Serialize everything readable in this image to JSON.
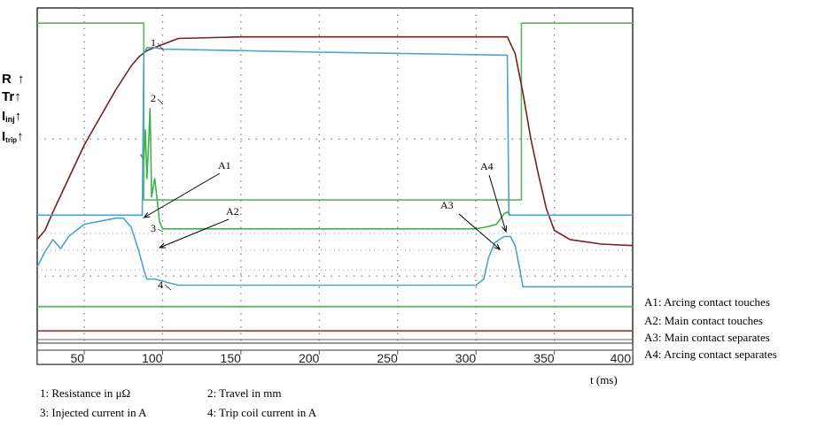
{
  "chart_data": {
    "type": "line",
    "xlabel": "t (ms)",
    "xlim": [
      20,
      400
    ],
    "x_ticks": [
      "50",
      "100",
      "150",
      "200",
      "250",
      "300",
      "350",
      "400"
    ],
    "y_axis_symbols": [
      {
        "label": "R",
        "arrow": "↑"
      },
      {
        "label": "Tr",
        "arrow": "↑"
      },
      {
        "label": "I",
        "sub": "inj",
        "arrow": "↑"
      },
      {
        "label": "I",
        "sub": "trip",
        "arrow": "↑"
      }
    ],
    "trace_numbers": [
      "1",
      "2",
      "3",
      "4"
    ],
    "annotations": [
      {
        "id": "A1",
        "text": "A1",
        "x": 87
      },
      {
        "id": "A2",
        "text": "A2",
        "x": 97
      },
      {
        "id": "A3",
        "text": "A3",
        "x": 313
      },
      {
        "id": "A4",
        "text": "A4",
        "x": 318
      }
    ],
    "annotation_legend": [
      "A1: Arcing contact touches",
      "A2: Main contact touches",
      "A3: Main contact separates",
      "A4: Arcing contact separates"
    ],
    "trace_legend": [
      "1: Resistance in μΩ",
      "2: Travel in mm",
      "3: Injected current in A",
      "4: Trip coil current in A"
    ],
    "series": [
      {
        "id": "resistance",
        "color": "#5cb85c",
        "x": [
          20,
          88,
          88,
          329,
          329,
          400
        ],
        "y": [
          95,
          95,
          37,
          37,
          95,
          95
        ]
      },
      {
        "id": "travel",
        "color": "#7a1f1f",
        "x": [
          20,
          25,
          30,
          40,
          50,
          60,
          70,
          80,
          85,
          90,
          95,
          100,
          110,
          150,
          200,
          250,
          300,
          320,
          325,
          330,
          335,
          340,
          345,
          350,
          360,
          380,
          400
        ],
        "y": [
          24,
          27,
          33,
          44,
          55,
          64,
          73,
          81,
          84,
          86,
          87,
          88,
          90,
          90.5,
          90.5,
          90.5,
          90.5,
          90.5,
          85,
          72,
          57,
          45,
          34,
          27,
          24,
          22.5,
          22
        ]
      },
      {
        "id": "injected",
        "color": "#4aa3d0",
        "x": [
          20,
          87,
          88,
          90,
          95,
          100,
          200,
          320,
          321,
          325,
          400
        ],
        "y": [
          32,
          32,
          85,
          87,
          87,
          86.5,
          85.5,
          84.5,
          32,
          32,
          32
        ]
      },
      {
        "id": "injected-arc",
        "color": "#3cb34a",
        "x": [
          86,
          88,
          89,
          90,
          91,
          92,
          93,
          95,
          97,
          98,
          100,
          150,
          200,
          250,
          300,
          305,
          310,
          313,
          316,
          318,
          320,
          322
        ],
        "y": [
          52,
          50,
          60,
          44,
          55,
          67,
          38,
          44,
          35,
          30,
          27.5,
          27.5,
          27.5,
          27.5,
          27.5,
          28,
          28.5,
          29,
          31,
          32.5,
          33,
          32
        ]
      },
      {
        "id": "trip-coil",
        "color": "#4aa3d0",
        "x": [
          20,
          25,
          30,
          35,
          40,
          45,
          50,
          60,
          70,
          75,
          80,
          85,
          88,
          90,
          95,
          110,
          200,
          300,
          305,
          308,
          312,
          318,
          322,
          325,
          328,
          330,
          335,
          340,
          400
        ],
        "y": [
          15,
          20,
          24,
          21,
          25,
          27,
          29,
          30,
          31,
          31,
          28,
          20,
          14,
          11,
          11,
          9,
          9,
          9,
          11,
          18,
          23,
          25,
          25,
          22,
          14,
          8.5,
          8.5,
          8.5,
          8.5
        ]
      },
      {
        "id": "baseline-green",
        "color": "#5cb85c",
        "x": [
          20,
          400
        ],
        "y": [
          2,
          2
        ]
      },
      {
        "id": "baseline-maroon",
        "color": "#9a4a4a",
        "x": [
          20,
          400
        ],
        "y": [
          -6,
          -6
        ]
      }
    ]
  }
}
